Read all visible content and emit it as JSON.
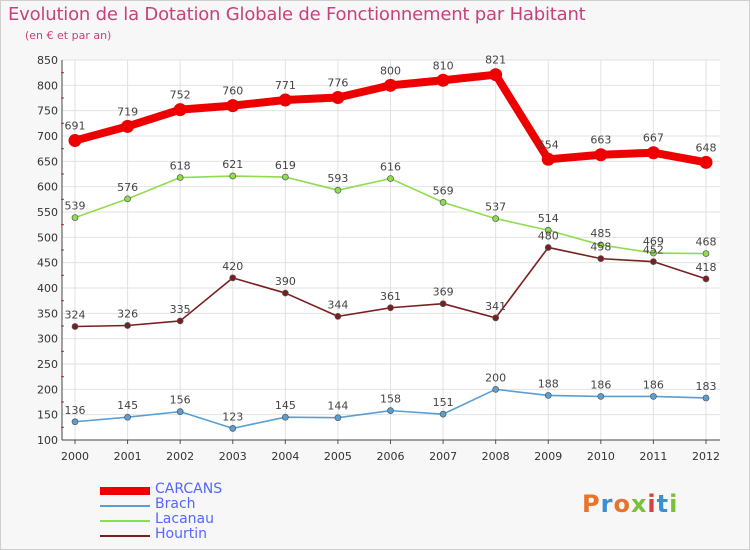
{
  "header": {
    "title": "Evolution de la Dotation Globale de Fonctionnement par Habitant",
    "subtitle": "(en € et par an)"
  },
  "logo": {
    "text": "Proxiti",
    "colors": [
      "#e8742a",
      "#3a8fd8",
      "#e8742a",
      "#7bbf3a",
      "#d94040",
      "#3a8fd8",
      "#7bbf3a"
    ]
  },
  "chart_data": {
    "type": "line",
    "title": "Evolution de la Dotation Globale de Fonctionnement par Habitant",
    "subtitle": "(en € et par an)",
    "x": [
      "2000",
      "2001",
      "2002",
      "2003",
      "2004",
      "2005",
      "2006",
      "2007",
      "2008",
      "2009",
      "2010",
      "2011",
      "2012"
    ],
    "ylim": [
      100,
      850
    ],
    "yticks": [
      100,
      150,
      200,
      250,
      300,
      350,
      400,
      450,
      500,
      550,
      600,
      650,
      700,
      750,
      800,
      850
    ],
    "grid": true,
    "legend": "bottom-left",
    "series": [
      {
        "name": "CARCANS",
        "color": "#ee0000",
        "values": [
          691,
          719,
          752,
          760,
          771,
          776,
          800,
          810,
          821,
          654,
          663,
          667,
          648
        ]
      },
      {
        "name": "Brach",
        "color": "#5a9fd4",
        "values": [
          136,
          145,
          156,
          123,
          145,
          144,
          158,
          151,
          200,
          188,
          186,
          186,
          183
        ]
      },
      {
        "name": "Lacanau",
        "color": "#8fdc4f",
        "values": [
          539,
          576,
          618,
          621,
          619,
          593,
          616,
          569,
          537,
          514,
          485,
          469,
          468
        ]
      },
      {
        "name": "Hourtin",
        "color": "#7a1f1f",
        "values": [
          324,
          326,
          335,
          420,
          390,
          344,
          361,
          369,
          341,
          480,
          458,
          452,
          418
        ]
      }
    ]
  }
}
